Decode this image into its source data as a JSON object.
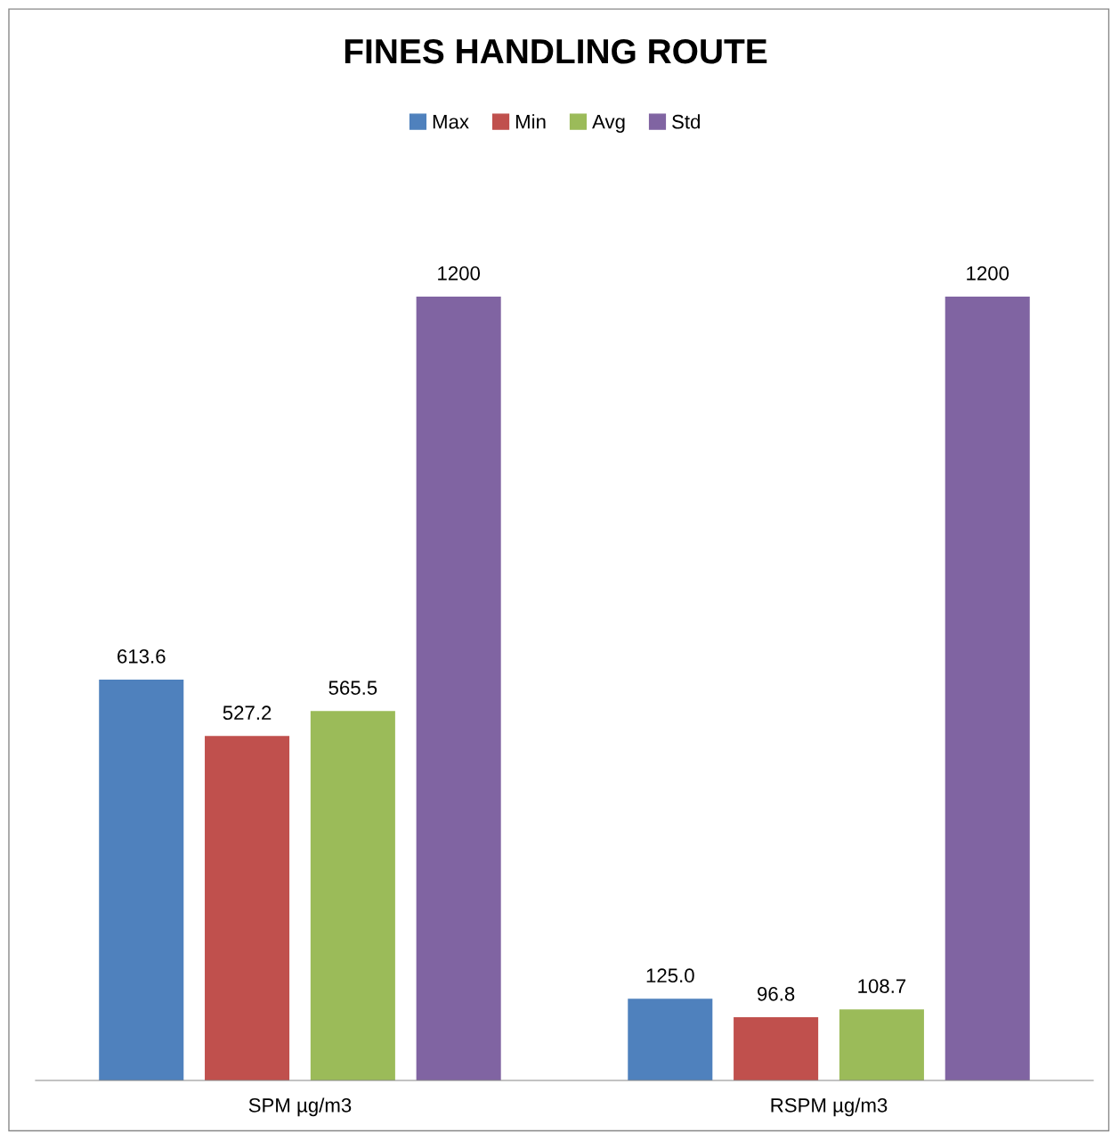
{
  "chart_data": {
    "type": "bar",
    "title": "FINES HANDLING ROUTE",
    "categories": [
      "SPM µg/m3",
      "RSPM µg/m3"
    ],
    "series": [
      {
        "name": "Max",
        "color": "#4f81bd",
        "values": [
          613.6,
          125.0
        ],
        "value_labels": [
          "613.6",
          "125.0"
        ]
      },
      {
        "name": "Min",
        "color": "#c0504d",
        "values": [
          527.2,
          96.8
        ],
        "value_labels": [
          "527.2",
          "96.8"
        ]
      },
      {
        "name": "Avg",
        "color": "#9bbb59",
        "values": [
          565.5,
          108.7
        ],
        "value_labels": [
          "565.5",
          "108.7"
        ]
      },
      {
        "name": "Std",
        "color": "#8064a2",
        "values": [
          1200,
          1200
        ],
        "value_labels": [
          "1200",
          "1200"
        ]
      }
    ],
    "legend": "top",
    "grid": false,
    "tick_labels": "x"
  }
}
